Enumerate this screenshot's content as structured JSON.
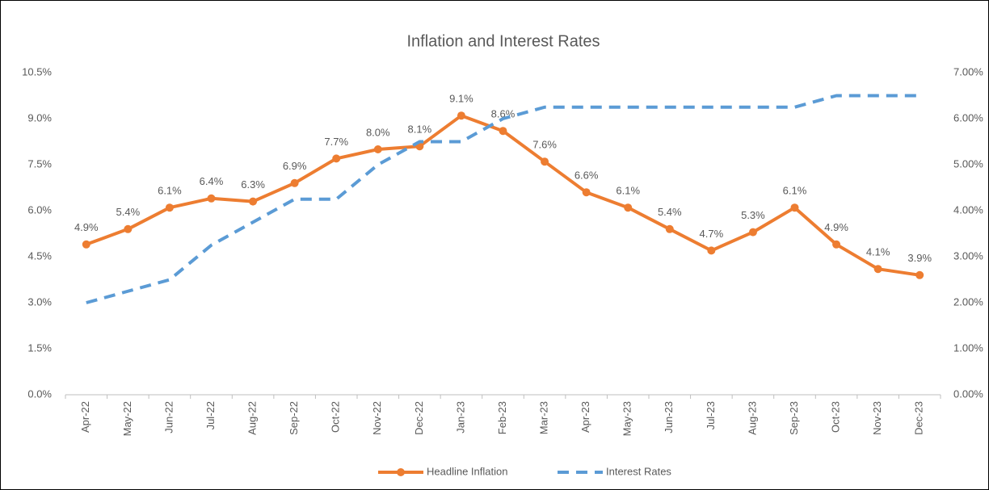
{
  "chart_data": {
    "type": "line",
    "title": "Inflation and Interest Rates",
    "categories": [
      "Apr-22",
      "May-22",
      "Jun-22",
      "Jul-22",
      "Aug-22",
      "Sep-22",
      "Oct-22",
      "Nov-22",
      "Dec-22",
      "Jan-23",
      "Feb-23",
      "Mar-23",
      "Apr-23",
      "May-23",
      "Jun-23",
      "Jul-23",
      "Aug-23",
      "Sep-23",
      "Oct-23",
      "Nov-23",
      "Dec-23"
    ],
    "series": [
      {
        "name": "Headline Inflation",
        "color": "#ed7d31",
        "values": [
          4.9,
          5.4,
          6.1,
          6.4,
          6.3,
          6.9,
          7.7,
          8.0,
          8.1,
          9.1,
          8.6,
          7.6,
          6.6,
          6.1,
          5.4,
          4.7,
          5.3,
          6.1,
          4.9,
          4.1,
          3.9
        ],
        "value_labels": [
          "4.9%",
          "5.4%",
          "6.1%",
          "6.4%",
          "6.3%",
          "6.9%",
          "7.7%",
          "8.0%",
          "8.1%",
          "9.1%",
          "8.6%",
          "7.6%",
          "6.6%",
          "6.1%",
          "5.4%",
          "4.7%",
          "5.3%",
          "6.1%",
          "4.9%",
          "4.1%",
          "3.9%"
        ]
      },
      {
        "name": "Interest Rates",
        "color": "#5b9bd5",
        "axis": "y2",
        "dashed": true,
        "values": [
          2.0,
          2.25,
          2.5,
          3.25,
          3.75,
          4.25,
          4.25,
          5.0,
          5.5,
          5.5,
          6.0,
          6.25,
          6.25,
          6.25,
          6.25,
          6.25,
          6.25,
          6.25,
          6.5,
          6.5,
          6.5
        ]
      }
    ],
    "ylim": [
      0,
      10.5
    ],
    "yticks": [
      {
        "value": 0,
        "label": "0.0%"
      },
      {
        "value": 1.5,
        "label": "1.5%"
      },
      {
        "value": 3,
        "label": "3.0%"
      },
      {
        "value": 4.5,
        "label": "4.5%"
      },
      {
        "value": 6,
        "label": "6.0%"
      },
      {
        "value": 7.5,
        "label": "7.5%"
      },
      {
        "value": 9,
        "label": "9.0%"
      },
      {
        "value": 10.5,
        "label": "10.5%"
      }
    ],
    "y2lim": [
      0,
      7
    ],
    "y2ticks": [
      {
        "value": 0,
        "label": "0.00%"
      },
      {
        "value": 1,
        "label": "1.00%"
      },
      {
        "value": 2,
        "label": "2.00%"
      },
      {
        "value": 3,
        "label": "3.00%"
      },
      {
        "value": 4,
        "label": "4.00%"
      },
      {
        "value": 5,
        "label": "5.00%"
      },
      {
        "value": 6,
        "label": "6.00%"
      },
      {
        "value": 7,
        "label": "7.00%"
      }
    ],
    "grid": false,
    "legend": "bottom"
  }
}
